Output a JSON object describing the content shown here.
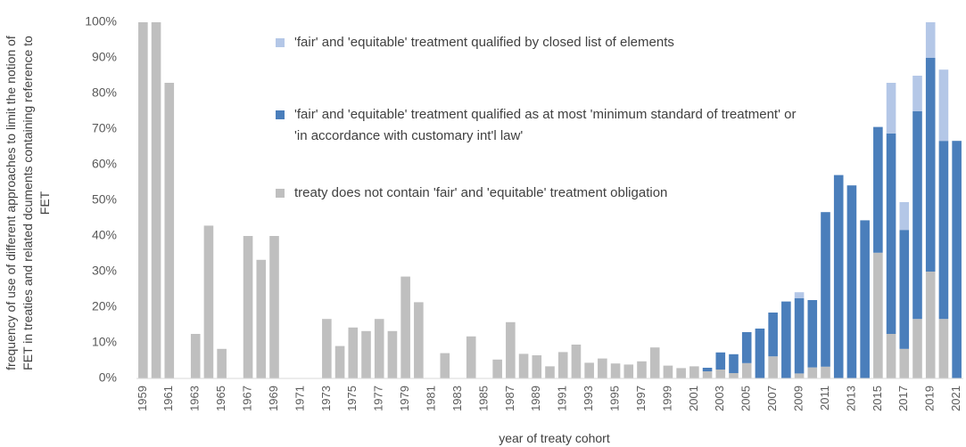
{
  "chart_data": {
    "type": "stacked_bar",
    "x_label": "year of treaty cohort",
    "y_label": "frequency of use of different approaches to limit the notion of FET in treaties and related dcuments containing reference to FET",
    "categories": [
      "1959",
      null,
      "1961",
      null,
      "1963",
      null,
      "1965",
      null,
      "1967",
      null,
      "1969",
      null,
      "1971",
      null,
      "1973",
      null,
      "1975",
      null,
      "1977",
      null,
      "1979",
      null,
      "1981",
      null,
      "1983",
      null,
      "1985",
      null,
      "1987",
      null,
      "1989",
      null,
      "1991",
      null,
      "1993",
      null,
      "1995",
      null,
      "1997",
      null,
      "1999",
      null,
      "2001",
      null,
      "2003",
      null,
      "2005",
      null,
      "2007",
      null,
      "2009",
      null,
      "2011",
      null,
      "2013",
      null,
      "2015",
      null,
      "2017",
      null,
      "2019",
      null,
      "2021"
    ],
    "series": [
      {
        "name": "'fair' and 'equitable' treatment qualified by closed list of elements",
        "color": "#b4c7e7",
        "values": [
          0,
          0,
          0,
          0,
          0,
          0,
          0,
          0,
          0,
          0,
          0,
          0,
          0,
          0,
          0,
          0,
          0,
          0,
          0,
          0,
          0,
          0,
          0,
          0,
          0,
          0,
          0,
          0,
          0,
          0,
          0,
          0,
          0,
          0,
          0,
          0,
          0,
          0,
          0,
          0,
          0,
          0,
          0,
          0,
          0,
          0,
          0,
          0,
          0,
          0,
          1.7,
          0,
          0,
          0,
          0,
          0,
          0,
          14.2,
          7.8,
          10,
          10,
          20,
          0
        ]
      },
      {
        "name": "'fair' and 'equitable' treatment qualified as at most 'minimum standard of treatment' or 'in accordance with customary int'l law'",
        "color": "#4a7ebb",
        "values": [
          0,
          0,
          0,
          0,
          0,
          0,
          0,
          0,
          0,
          0,
          0,
          0,
          0,
          0,
          0,
          0,
          0,
          0,
          0,
          0,
          0,
          0,
          0,
          0,
          0,
          0,
          0,
          0,
          0,
          0,
          0,
          0,
          0,
          0,
          0,
          0,
          0,
          0,
          0,
          0,
          0,
          0,
          0,
          1,
          4.8,
          5.3,
          8.7,
          14,
          12.3,
          21.6,
          21.1,
          18.9,
          43.4,
          57.1,
          54.2,
          44.4,
          35.3,
          56.3,
          33.4,
          58.3,
          60,
          50,
          66.7
        ]
      },
      {
        "name": "treaty does not contain 'fair' and 'equitable' treatment obligation",
        "color": "#bfbfbf",
        "values": [
          100,
          100,
          83,
          0,
          12.5,
          42.9,
          8.3,
          0,
          40,
          33.3,
          40,
          0,
          0,
          0,
          16.7,
          9.1,
          14.3,
          13.3,
          16.7,
          13.3,
          28.6,
          21.4,
          0,
          7.1,
          0,
          11.8,
          0,
          5.3,
          15.8,
          6.9,
          6.5,
          3.4,
          7.4,
          9.5,
          4.4,
          5.6,
          4.2,
          3.9,
          4.8,
          8.7,
          3.6,
          2.9,
          3.4,
          2,
          2.5,
          1.5,
          4.3,
          0,
          6.2,
          0,
          1.4,
          3.1,
          3.3,
          0,
          0,
          0,
          35.3,
          12.5,
          8.3,
          16.7,
          30,
          16.7,
          0
        ]
      }
    ],
    "ylim": [
      0,
      100
    ],
    "yticks": [
      {
        "value": 0,
        "label": "0%"
      },
      {
        "value": 10,
        "label": "10%"
      },
      {
        "value": 20,
        "label": "20%"
      },
      {
        "value": 30,
        "label": "30%"
      },
      {
        "value": 40,
        "label": "40%"
      },
      {
        "value": 50,
        "label": "50%"
      },
      {
        "value": 60,
        "label": "60%"
      },
      {
        "value": 70,
        "label": "70%"
      },
      {
        "value": 80,
        "label": "80%"
      },
      {
        "value": 90,
        "label": "90%"
      },
      {
        "value": 100,
        "label": "100%"
      }
    ]
  }
}
